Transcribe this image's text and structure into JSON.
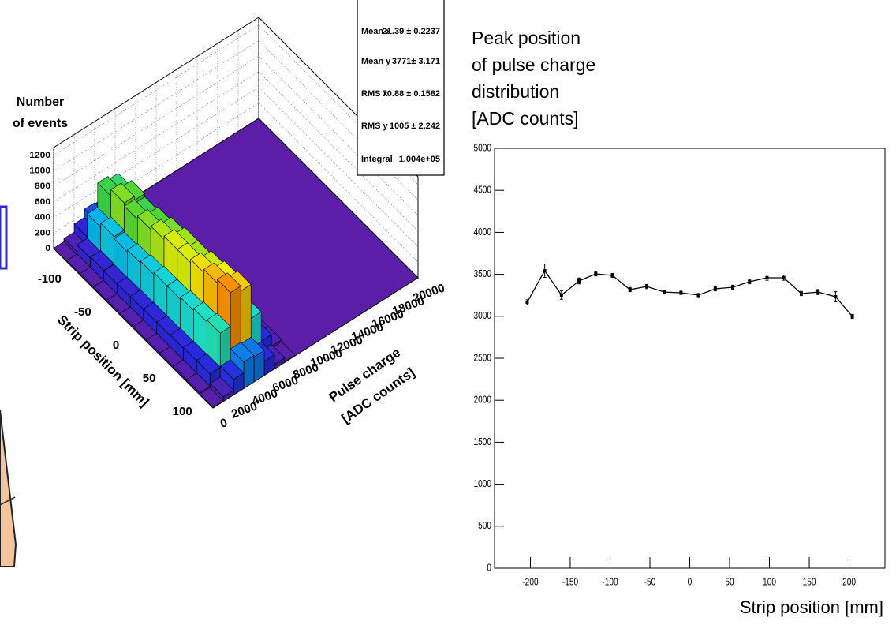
{
  "chart_data": [
    {
      "type": "lego",
      "z_label": [
        "Number",
        "of events"
      ],
      "x_label": "Strip position [mm]",
      "y_label": [
        "Pulse charge",
        "[ADC counts]"
      ],
      "xbins": [
        -120,
        -100,
        -80,
        -60,
        -40,
        -20,
        0,
        20,
        40,
        60,
        80,
        100,
        120
      ],
      "ybins": [
        0,
        1000,
        2000,
        3000,
        4000,
        5000,
        6000,
        7000,
        8000
      ],
      "z": [
        [
          6,
          45,
          150,
          255,
          240,
          135,
          45,
          9
        ],
        [
          18,
          135,
          450,
          765,
          720,
          405,
          135,
          27
        ],
        [
          20,
          150,
          500,
          850,
          800,
          450,
          150,
          30
        ],
        [
          19,
          143,
          475,
          808,
          760,
          428,
          143,
          29
        ],
        [
          20,
          150,
          500,
          850,
          800,
          450,
          150,
          30
        ],
        [
          21,
          158,
          525,
          893,
          840,
          473,
          158,
          32
        ],
        [
          22,
          165,
          550,
          935,
          880,
          495,
          165,
          33
        ],
        [
          22,
          165,
          550,
          935,
          880,
          495,
          165,
          33
        ],
        [
          23,
          173,
          575,
          978,
          920,
          518,
          173,
          35
        ],
        [
          24,
          180,
          600,
          1020,
          960,
          540,
          180,
          36
        ],
        [
          25,
          188,
          625,
          1063,
          1000,
          563,
          188,
          38
        ],
        [
          8,
          60,
          200,
          340,
          320,
          180,
          60,
          12
        ]
      ],
      "xlim": [
        -120,
        120
      ],
      "ylim": [
        0,
        20000
      ],
      "zlim": [
        0,
        1300
      ],
      "xticks": [
        -100,
        -50,
        0,
        50,
        100
      ],
      "yticks": [
        0,
        2000,
        4000,
        6000,
        8000,
        10000,
        12000,
        14000,
        16000,
        18000,
        20000
      ],
      "zticks": [
        0,
        200,
        400,
        600,
        800,
        1000,
        1200
      ],
      "stats": [
        {
          "name": "Mean x",
          "value": "21.39 ± 0.2237"
        },
        {
          "name": "Mean y",
          "value": "3771± 3.171"
        },
        {
          "name": "RMS x",
          "value": "70.88 ± 0.1582"
        },
        {
          "name": "RMS y",
          "value": "1005 ± 2.242"
        },
        {
          "name": "Integral",
          "value": "1.004e+05"
        }
      ]
    },
    {
      "type": "line",
      "y_label": [
        "Peak position",
        "of pulse charge",
        "distribution",
        "[ADC counts]"
      ],
      "x_label": "Strip position [mm]",
      "x": [
        -204,
        -182,
        -161,
        -139,
        -118,
        -97,
        -75,
        -54,
        -32,
        -11,
        11,
        32,
        54,
        75,
        97,
        118,
        140,
        161,
        183,
        204
      ],
      "values": [
        3167,
        3543,
        3252,
        3421,
        3506,
        3487,
        3318,
        3355,
        3289,
        3280,
        3252,
        3327,
        3346,
        3412,
        3459,
        3459,
        3271,
        3289,
        3233,
        2998
      ],
      "errors": [
        30,
        80,
        50,
        35,
        25,
        25,
        25,
        25,
        20,
        20,
        20,
        25,
        25,
        25,
        30,
        30,
        25,
        30,
        60,
        25
      ],
      "color": "#000000",
      "xlim": [
        -245,
        245
      ],
      "ylim": [
        0,
        5000
      ],
      "xticks": [
        -200,
        -150,
        -100,
        -50,
        0,
        50,
        100,
        150,
        200
      ],
      "yticks": [
        0,
        500,
        1000,
        1500,
        2000,
        2500,
        3000,
        3500,
        4000,
        4500,
        5000
      ]
    }
  ]
}
